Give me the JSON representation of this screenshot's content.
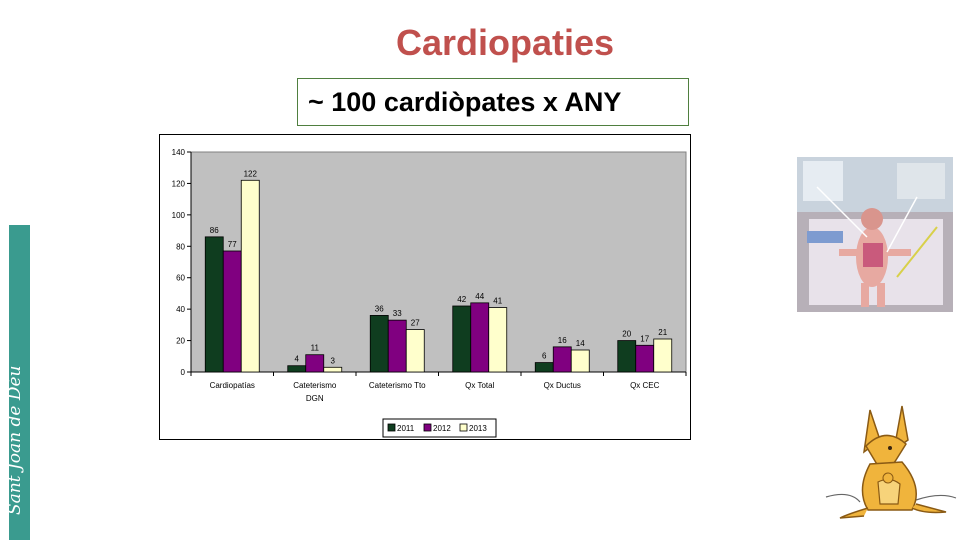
{
  "slide": {
    "title": "Cardiopaties",
    "subtitle": "~ 100 cardiòpates x ANY",
    "brand": "Sant Joan de Déu"
  },
  "colors": {
    "title": "#c0504d",
    "plot_background": "#c0c0c0",
    "brand_strip": "#3a9b8f"
  },
  "chart_data": {
    "type": "bar",
    "categories": [
      [
        "Cardiopatías"
      ],
      [
        "Cateterismo",
        "DGN"
      ],
      [
        "Cateterismo Tto"
      ],
      [
        "Qx Total"
      ],
      [
        "Qx Ductus"
      ],
      [
        "Qx CEC"
      ]
    ],
    "series": [
      {
        "name": "2011",
        "color": "#0f3d1f",
        "values": [
          86,
          4,
          36,
          42,
          6,
          20
        ]
      },
      {
        "name": "2012",
        "color": "#800080",
        "values": [
          77,
          11,
          33,
          44,
          16,
          17
        ]
      },
      {
        "name": "2013",
        "color": "#ffffcc",
        "values": [
          122,
          3,
          27,
          41,
          14,
          21
        ]
      }
    ],
    "ylim": [
      0,
      140
    ],
    "yticks": [
      0,
      20,
      40,
      60,
      80,
      100,
      120,
      140
    ],
    "grid": false,
    "legend": "bottom",
    "data_labels": true
  }
}
